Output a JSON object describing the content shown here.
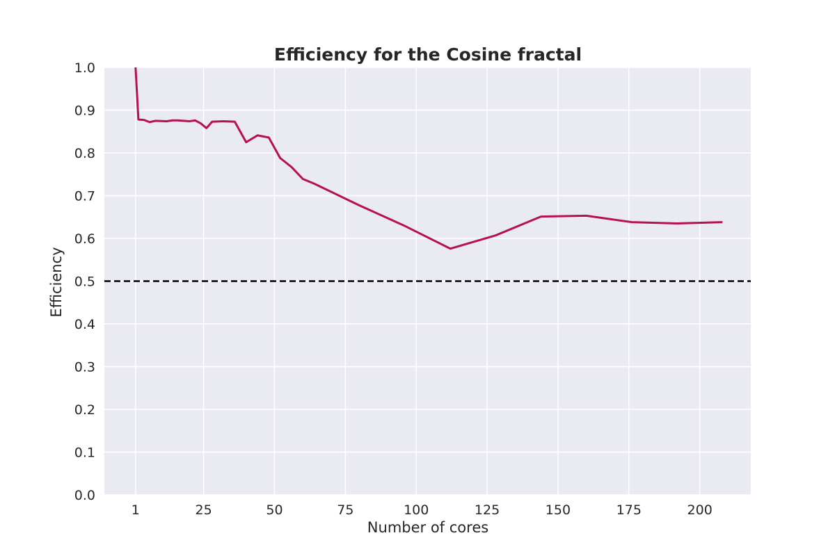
{
  "chart_data": {
    "type": "line",
    "title": "Efficiency for the Cosine fractal",
    "xlabel": "Number of cores",
    "ylabel": "Efficiency",
    "xlim": [
      -10,
      218
    ],
    "ylim": [
      0.0,
      1.0
    ],
    "grid": true,
    "x_tick_labels": [
      "1",
      "25",
      "50",
      "75",
      "100",
      "125",
      "150",
      "175",
      "200"
    ],
    "x_tick_values": [
      1,
      25,
      50,
      75,
      100,
      125,
      150,
      175,
      200
    ],
    "y_tick_labels": [
      "0.0",
      "0.1",
      "0.2",
      "0.3",
      "0.4",
      "0.5",
      "0.6",
      "0.7",
      "0.8",
      "0.9",
      "1.0"
    ],
    "y_tick_values": [
      0.0,
      0.1,
      0.2,
      0.3,
      0.4,
      0.5,
      0.6,
      0.7,
      0.8,
      0.9,
      1.0
    ],
    "series": [
      {
        "color": "#b5124f",
        "x": [
          1,
          2,
          4,
          6,
          8,
          12,
          14,
          16,
          20,
          22,
          24,
          26,
          28,
          32,
          36,
          40,
          44,
          48,
          52,
          56,
          60,
          64,
          80,
          96,
          112,
          128,
          144,
          160,
          176,
          192,
          208
        ],
        "y": [
          1.0,
          0.878,
          0.877,
          0.872,
          0.875,
          0.874,
          0.876,
          0.876,
          0.874,
          0.876,
          0.869,
          0.858,
          0.873,
          0.874,
          0.873,
          0.825,
          0.841,
          0.836,
          0.788,
          0.767,
          0.739,
          0.728,
          0.677,
          0.629,
          0.576,
          0.607,
          0.651,
          0.653,
          0.638,
          0.635,
          0.638
        ]
      }
    ],
    "reference_line": {
      "y": 0.5,
      "style": "dashed",
      "color": "#000000"
    },
    "background_color": "#eaeaf2",
    "grid_color": "#ffffff"
  }
}
